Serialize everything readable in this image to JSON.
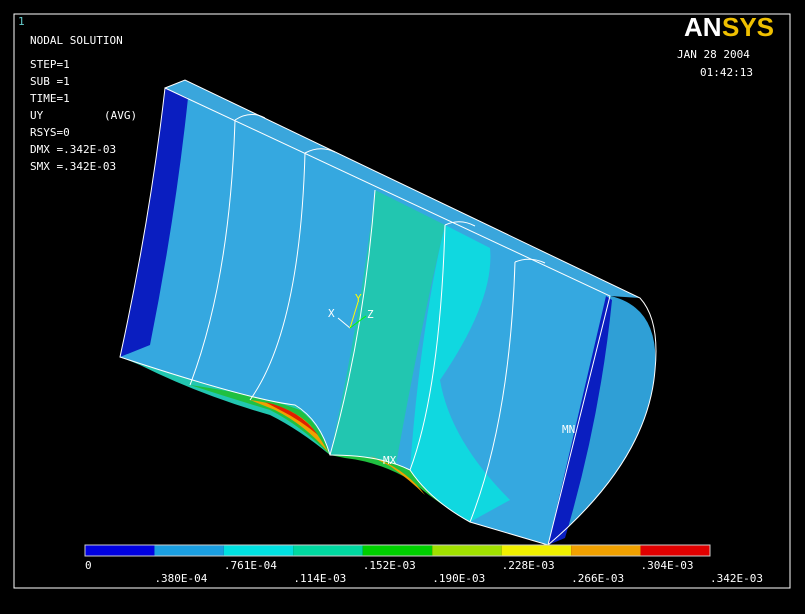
{
  "window_number": "1",
  "title": "NODAL SOLUTION",
  "info": [
    "STEP=1",
    "SUB =1",
    "TIME=1"
  ],
  "result": {
    "label": "UY",
    "avg": "(AVG)"
  },
  "info2": [
    "RSYS=0",
    "DMX =.342E-03",
    "SMX =.342E-03"
  ],
  "logo": {
    "part1": "AN",
    "part2": "SYS"
  },
  "date": "JAN 28 2004",
  "time": "01:42:13",
  "triad": {
    "x": "X",
    "y": "Y",
    "z": "Z"
  },
  "markers": {
    "max": "MX",
    "min": "MN"
  },
  "legend": {
    "colors": [
      "#0000e0",
      "#1a9ee0",
      "#00e0e0",
      "#00d8a0",
      "#00d000",
      "#a0e000",
      "#f0f000",
      "#f0a000",
      "#e00000"
    ],
    "labels": [
      "0",
      ".380E-04",
      ".761E-04",
      ".114E-03",
      ".152E-03",
      ".190E-03",
      ".228E-03",
      ".266E-03",
      ".304E-03",
      ".342E-03"
    ]
  }
}
